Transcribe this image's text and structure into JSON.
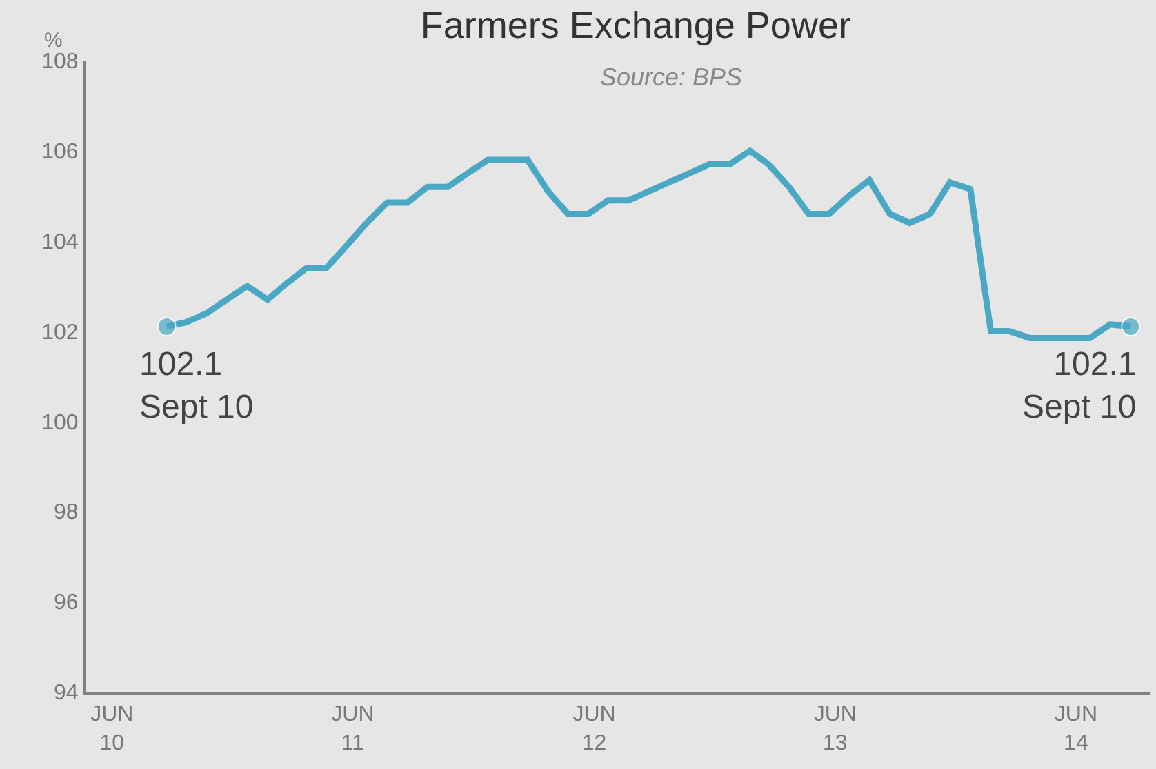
{
  "chart_data": {
    "type": "line",
    "title": "Farmers Exchange Power",
    "subtitle": "Source: BPS",
    "ylabel": "%",
    "x": [
      "2010-09",
      "2010-10",
      "2010-11",
      "2010-12",
      "2011-01",
      "2011-02",
      "2011-03",
      "2011-04",
      "2011-05",
      "2011-06",
      "2011-07",
      "2011-08",
      "2011-09",
      "2011-10",
      "2011-11",
      "2011-12",
      "2012-01",
      "2012-02",
      "2012-03",
      "2012-04",
      "2012-05",
      "2012-06",
      "2012-07",
      "2012-08",
      "2012-09",
      "2012-10",
      "2012-11",
      "2012-12",
      "2013-01",
      "2013-02",
      "2013-03",
      "2013-04",
      "2013-05",
      "2013-06",
      "2013-07",
      "2013-08",
      "2013-09",
      "2013-10",
      "2013-11",
      "2013-12",
      "2014-01",
      "2014-02",
      "2014-03",
      "2014-04",
      "2014-05",
      "2014-06",
      "2014-07",
      "2014-08",
      "2014-09"
    ],
    "series": [
      {
        "color": "#4aa8c4",
        "values": [
          102.1,
          102.2,
          102.4,
          102.7,
          103.0,
          102.7,
          103.05,
          103.4,
          103.4,
          103.9,
          104.4,
          104.85,
          104.85,
          105.2,
          105.2,
          105.5,
          105.8,
          105.8,
          105.8,
          105.1,
          104.6,
          104.6,
          104.9,
          104.9,
          105.1,
          105.3,
          105.5,
          105.7,
          105.7,
          106.0,
          105.7,
          105.2,
          104.6,
          104.6,
          105.0,
          105.35,
          104.6,
          104.4,
          104.6,
          105.3,
          105.15,
          102.0,
          102.0,
          101.85,
          101.85,
          101.85,
          101.85,
          102.15,
          102.1
        ]
      }
    ],
    "xlim": [
      "2010-05",
      "2014-10"
    ],
    "xticks": [
      {
        "value": "2010-06-10",
        "label": "JUN\n10"
      },
      {
        "value": "2011-06-10",
        "label": "JUN\n11"
      },
      {
        "value": "2012-06-10",
        "label": "JUN\n12"
      },
      {
        "value": "2013-06-10",
        "label": "JUN\n13"
      },
      {
        "value": "2014-06-10",
        "label": "JUN\n14"
      }
    ],
    "ylim": [
      94,
      108
    ],
    "yticks": [
      94,
      96,
      98,
      100,
      102,
      104,
      106,
      108
    ],
    "grid": false,
    "marker": "none",
    "line_style": "solid",
    "annotations": [
      {
        "text": "102.1\nSept 10",
        "x": "2010-09",
        "y": 102.1
      },
      {
        "text": "102.1\nSept 10",
        "x": "2014-09",
        "y": 102.1
      }
    ]
  }
}
